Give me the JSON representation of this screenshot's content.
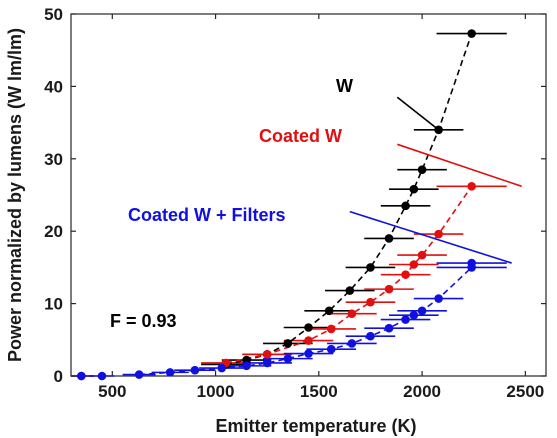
{
  "chart_data": {
    "type": "scatter",
    "xlabel": "Emitter temperature (K)",
    "ylabel": "Power normalized by lumens (W lm/lm)",
    "xlim": [
      300,
      2600
    ],
    "ylim": [
      0,
      50
    ],
    "xticks": [
      500,
      1000,
      1500,
      2000,
      2500
    ],
    "yticks": [
      0,
      10,
      20,
      30,
      40,
      50
    ],
    "grid": false,
    "series": [
      {
        "name": "W",
        "color": "#000000",
        "points": [
          {
            "x": 1050,
            "y": 1.6,
            "xerr": 120
          },
          {
            "x": 1150,
            "y": 2.2,
            "xerr": 120
          },
          {
            "x": 1250,
            "y": 3.0,
            "xerr": 120
          },
          {
            "x": 1350,
            "y": 4.5,
            "xerr": 120
          },
          {
            "x": 1450,
            "y": 6.7,
            "xerr": 120
          },
          {
            "x": 1550,
            "y": 9.0,
            "xerr": 120
          },
          {
            "x": 1650,
            "y": 11.8,
            "xerr": 120
          },
          {
            "x": 1750,
            "y": 15.0,
            "xerr": 120
          },
          {
            "x": 1840,
            "y": 19.0,
            "xerr": 120
          },
          {
            "x": 1920,
            "y": 23.5,
            "xerr": 120
          },
          {
            "x": 1960,
            "y": 25.8,
            "xerr": 120
          },
          {
            "x": 2000,
            "y": 28.5,
            "xerr": 120
          },
          {
            "x": 2080,
            "y": 34.0,
            "xerr": 120
          },
          {
            "x": 2240,
            "y": 47.3,
            "xerr": 170
          }
        ]
      },
      {
        "name": "Coated W",
        "color": "#e01010",
        "points": [
          {
            "x": 350,
            "y": 0.0,
            "xerr": 60
          },
          {
            "x": 1050,
            "y": 1.8,
            "xerr": 120
          },
          {
            "x": 1250,
            "y": 3.0,
            "xerr": 120
          },
          {
            "x": 1450,
            "y": 4.9,
            "xerr": 120
          },
          {
            "x": 1560,
            "y": 6.5,
            "xerr": 120
          },
          {
            "x": 1660,
            "y": 8.6,
            "xerr": 120
          },
          {
            "x": 1750,
            "y": 10.2,
            "xerr": 120
          },
          {
            "x": 1840,
            "y": 12.0,
            "xerr": 120
          },
          {
            "x": 1920,
            "y": 14.0,
            "xerr": 120
          },
          {
            "x": 1960,
            "y": 15.4,
            "xerr": 120
          },
          {
            "x": 2000,
            "y": 16.7,
            "xerr": 120
          },
          {
            "x": 2080,
            "y": 19.6,
            "xerr": 120
          },
          {
            "x": 2240,
            "y": 26.2,
            "xerr": 170
          }
        ]
      },
      {
        "name": "Coated W + Filters",
        "color": "#1010e0",
        "points": [
          {
            "x": 350,
            "y": 0.0,
            "xerr": 60
          },
          {
            "x": 450,
            "y": 0.0,
            "xerr": 60
          },
          {
            "x": 630,
            "y": 0.2,
            "xerr": 80
          },
          {
            "x": 780,
            "y": 0.5,
            "xerr": 90
          },
          {
            "x": 900,
            "y": 0.8,
            "xerr": 100
          },
          {
            "x": 1030,
            "y": 1.1,
            "xerr": 110
          },
          {
            "x": 1150,
            "y": 1.4,
            "xerr": 120
          },
          {
            "x": 1250,
            "y": 1.8,
            "xerr": 120
          },
          {
            "x": 1350,
            "y": 2.4,
            "xerr": 120
          },
          {
            "x": 1450,
            "y": 3.1,
            "xerr": 120
          },
          {
            "x": 1560,
            "y": 3.7,
            "xerr": 120
          },
          {
            "x": 1660,
            "y": 4.5,
            "xerr": 120
          },
          {
            "x": 1750,
            "y": 5.5,
            "xerr": 120
          },
          {
            "x": 1840,
            "y": 6.6,
            "xerr": 120
          },
          {
            "x": 1920,
            "y": 7.8,
            "xerr": 120
          },
          {
            "x": 1960,
            "y": 8.4,
            "xerr": 120
          },
          {
            "x": 2000,
            "y": 9.0,
            "xerr": 120
          },
          {
            "x": 2080,
            "y": 10.7,
            "xerr": 120
          },
          {
            "x": 2240,
            "y": 15.0,
            "xerr": 170
          },
          {
            "x": 2240,
            "y": 15.6,
            "xerr": 170
          }
        ]
      }
    ],
    "annotations": [
      {
        "text": "W",
        "color": "#000000",
        "point": [
          2080,
          34.0
        ],
        "from": [
          1880,
          38.5
        ]
      },
      {
        "text": "Coated W",
        "color": "#e01010",
        "point": [
          2240,
          26.2
        ],
        "from": [
          1880,
          32.0
        ]
      },
      {
        "text": "Coated W + Filters",
        "color": "#1010e0",
        "point": [
          2240,
          15.6
        ],
        "from": [
          1650,
          22.7
        ]
      },
      {
        "text": "F = 0.93",
        "color": "#000000"
      }
    ]
  }
}
